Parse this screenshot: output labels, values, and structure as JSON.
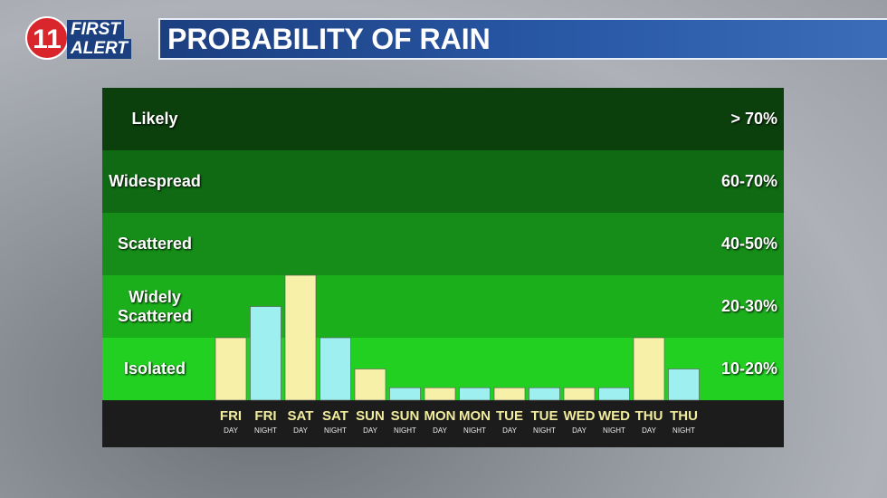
{
  "header": {
    "logo_top": "FIRST",
    "logo_bottom": "ALERT",
    "logo_number": "11"
  },
  "chart_data": {
    "type": "bar",
    "title": "PROBABILITY OF RAIN",
    "bands": [
      {
        "name": "Likely",
        "range": "> 70%",
        "min": 70,
        "color": "#0b3f0c"
      },
      {
        "name": "Widespread",
        "range": "60-70%",
        "min": 60,
        "max": 70,
        "color": "#0f6a13"
      },
      {
        "name": "Scattered",
        "range": "40-50%",
        "min": 40,
        "max": 50,
        "color": "#168d18"
      },
      {
        "name": "Widely Scattered",
        "range": "20-30%",
        "min": 20,
        "max": 30,
        "color": "#1caf1c"
      },
      {
        "name": "Isolated",
        "range": "10-20%",
        "min": 10,
        "max": 20,
        "color": "#22d022"
      }
    ],
    "categories": [
      "FRI",
      "FRI",
      "SAT",
      "SAT",
      "SUN",
      "SUN",
      "MON",
      "MON",
      "TUE",
      "TUE",
      "WED",
      "WED",
      "THU",
      "THU"
    ],
    "periods": [
      "DAY",
      "NIGHT",
      "DAY",
      "NIGHT",
      "DAY",
      "NIGHT",
      "DAY",
      "NIGHT",
      "DAY",
      "NIGHT",
      "DAY",
      "NIGHT",
      "DAY",
      "NIGHT"
    ],
    "values": [
      20,
      25,
      30,
      20,
      15,
      12,
      12,
      12,
      12,
      12,
      12,
      12,
      20,
      15
    ],
    "bar_colors": [
      "#f6f0a8",
      "#9eeff0",
      "#f6f0a8",
      "#9eeff0",
      "#f6f0a8",
      "#9eeff0",
      "#f6f0a8",
      "#9eeff0",
      "#f6f0a8",
      "#9eeff0",
      "#f6f0a8",
      "#9eeff0",
      "#f6f0a8",
      "#9eeff0"
    ]
  }
}
